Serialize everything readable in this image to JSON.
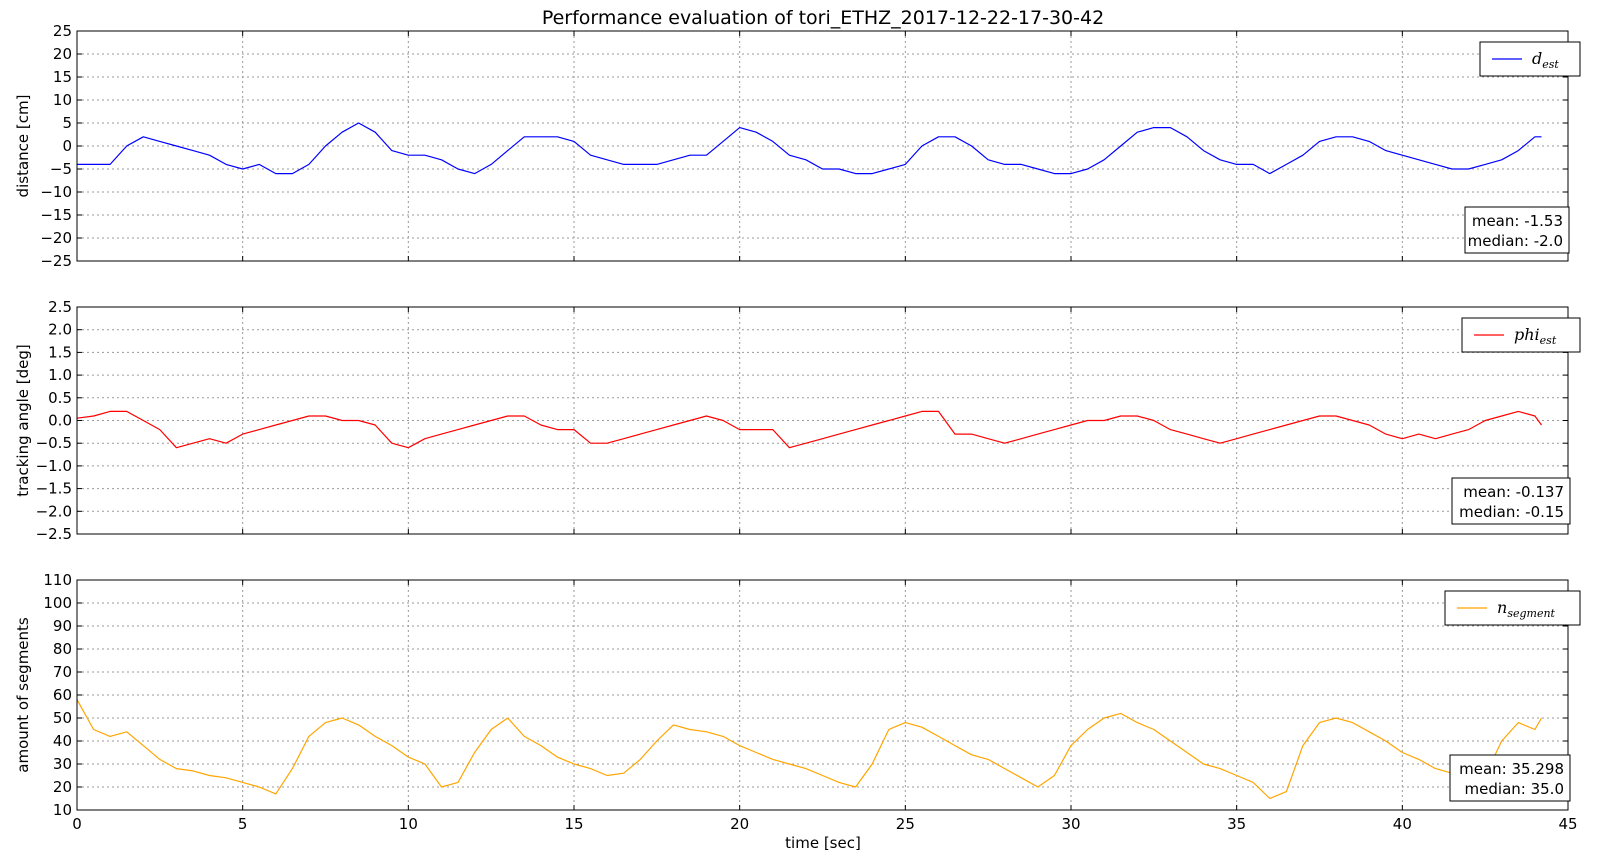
{
  "figure_title": "Performance evaluation of tori_ETHZ_2017-12-22-17-30-42",
  "x_axis": {
    "label": "time [sec]",
    "range": [
      0,
      45
    ],
    "ticks": [
      0,
      5,
      10,
      15,
      20,
      25,
      30,
      35,
      40,
      45
    ]
  },
  "grid": true,
  "chart_data": [
    {
      "type": "line",
      "ylabel": "distance [cm]",
      "ylim": [
        -25,
        25
      ],
      "yticks": [
        -25,
        -20,
        -15,
        -10,
        -5,
        0,
        5,
        10,
        15,
        20,
        25
      ],
      "yticklabels": [
        "−25",
        "−20",
        "−15",
        "−10",
        "−5",
        "0",
        "5",
        "10",
        "15",
        "20",
        "25"
      ],
      "legend_position": "top-right",
      "series": [
        {
          "name_main": "d",
          "name_sub": "est",
          "color": "#0000ff",
          "x": [
            0,
            0.5,
            1,
            1.5,
            2,
            2.5,
            3,
            3.5,
            4,
            4.5,
            5,
            5.5,
            6,
            6.5,
            7,
            7.5,
            8,
            8.5,
            9,
            9.5,
            10,
            10.5,
            11,
            11.5,
            12,
            12.5,
            13,
            13.5,
            14,
            14.5,
            15,
            15.5,
            16,
            16.5,
            17,
            17.5,
            18,
            18.5,
            19,
            19.5,
            20,
            20.5,
            21,
            21.5,
            22,
            22.5,
            23,
            23.5,
            24,
            24.5,
            25,
            25.5,
            26,
            26.5,
            27,
            27.5,
            28,
            28.5,
            29,
            29.5,
            30,
            30.5,
            31,
            31.5,
            32,
            32.5,
            33,
            33.5,
            34,
            34.5,
            35,
            35.5,
            36,
            36.5,
            37,
            37.5,
            38,
            38.5,
            39,
            39.5,
            40,
            40.5,
            41,
            41.5,
            42,
            42.5,
            43,
            43.5,
            44,
            44.2
          ],
          "y": [
            -4,
            -4,
            -4,
            0,
            2,
            1,
            0,
            -1,
            -2,
            -4,
            -5,
            -4,
            -6,
            -6,
            -4,
            0,
            3,
            5,
            3,
            -1,
            -2,
            -2,
            -3,
            -5,
            -6,
            -4,
            -1,
            2,
            2,
            2,
            1,
            -2,
            -3,
            -4,
            -4,
            -4,
            -3,
            -2,
            -2,
            1,
            4,
            3,
            1,
            -2,
            -3,
            -5,
            -5,
            -6,
            -6,
            -5,
            -4,
            0,
            2,
            2,
            0,
            -3,
            -4,
            -4,
            -5,
            -6,
            -6,
            -5,
            -3,
            0,
            3,
            4,
            4,
            2,
            -1,
            -3,
            -4,
            -4,
            -6,
            -4,
            -2,
            1,
            2,
            2,
            1,
            -1,
            -2,
            -3,
            -4,
            -5,
            -5,
            -4,
            -3,
            -1,
            2,
            2
          ]
        }
      ],
      "stats": {
        "mean": "mean: -1.53",
        "median": "median: -2.0"
      }
    },
    {
      "type": "line",
      "ylabel": "tracking angle [deg]",
      "ylim": [
        -2.5,
        2.5
      ],
      "yticks": [
        -2.5,
        -2.0,
        -1.5,
        -1.0,
        -0.5,
        0.0,
        0.5,
        1.0,
        1.5,
        2.0,
        2.5
      ],
      "yticklabels": [
        "−2.5",
        "−2.0",
        "−1.5",
        "−1.0",
        "−0.5",
        "0.0",
        "0.5",
        "1.0",
        "1.5",
        "2.0",
        "2.5"
      ],
      "legend_position": "top-right",
      "series": [
        {
          "name_main": "phi",
          "name_sub": "est",
          "color": "#ff0000",
          "x": [
            0,
            0.5,
            1,
            1.5,
            2,
            2.5,
            3,
            3.5,
            4,
            4.5,
            5,
            5.5,
            6,
            6.5,
            7,
            7.5,
            8,
            8.5,
            9,
            9.5,
            10,
            10.5,
            11,
            11.5,
            12,
            12.5,
            13,
            13.5,
            14,
            14.5,
            15,
            15.5,
            16,
            16.5,
            17,
            17.5,
            18,
            18.5,
            19,
            19.5,
            20,
            20.5,
            21,
            21.5,
            22,
            22.5,
            23,
            23.5,
            24,
            24.5,
            25,
            25.5,
            26,
            26.5,
            27,
            27.5,
            28,
            28.5,
            29,
            29.5,
            30,
            30.5,
            31,
            31.5,
            32,
            32.5,
            33,
            33.5,
            34,
            34.5,
            35,
            35.5,
            36,
            36.5,
            37,
            37.5,
            38,
            38.5,
            39,
            39.5,
            40,
            40.5,
            41,
            41.5,
            42,
            42.5,
            43,
            43.5,
            44,
            44.2
          ],
          "y": [
            0.05,
            0.1,
            0.2,
            0.2,
            0.0,
            -0.2,
            -0.6,
            -0.5,
            -0.4,
            -0.5,
            -0.3,
            -0.2,
            -0.1,
            0.0,
            0.1,
            0.1,
            0.0,
            0.0,
            -0.1,
            -0.5,
            -0.6,
            -0.4,
            -0.3,
            -0.2,
            -0.1,
            0.0,
            0.1,
            0.1,
            -0.1,
            -0.2,
            -0.2,
            -0.5,
            -0.5,
            -0.4,
            -0.3,
            -0.2,
            -0.1,
            0.0,
            0.1,
            0.0,
            -0.2,
            -0.2,
            -0.2,
            -0.6,
            -0.5,
            -0.4,
            -0.3,
            -0.2,
            -0.1,
            0.0,
            0.1,
            0.2,
            0.2,
            -0.3,
            -0.3,
            -0.4,
            -0.5,
            -0.4,
            -0.3,
            -0.2,
            -0.1,
            0.0,
            0.0,
            0.1,
            0.1,
            0.0,
            -0.2,
            -0.3,
            -0.4,
            -0.5,
            -0.4,
            -0.3,
            -0.2,
            -0.1,
            0.0,
            0.1,
            0.1,
            0.0,
            -0.1,
            -0.3,
            -0.4,
            -0.3,
            -0.4,
            -0.3,
            -0.2,
            0.0,
            0.1,
            0.2,
            0.1,
            -0.1
          ]
        }
      ],
      "stats": {
        "mean": "mean: -0.137",
        "median": "median: -0.15"
      }
    },
    {
      "type": "line",
      "ylabel": "amount of segments",
      "ylim": [
        10,
        110
      ],
      "yticks": [
        10,
        20,
        30,
        40,
        50,
        60,
        70,
        80,
        90,
        100,
        110
      ],
      "yticklabels": [
        "10",
        "20",
        "30",
        "40",
        "50",
        "60",
        "70",
        "80",
        "90",
        "100",
        "110"
      ],
      "legend_position": "top-right",
      "series": [
        {
          "name_main": "n",
          "name_sub": "segment",
          "color": "#ffa500",
          "x": [
            0,
            0.5,
            1,
            1.5,
            2,
            2.5,
            3,
            3.5,
            4,
            4.5,
            5,
            5.5,
            6,
            6.5,
            7,
            7.5,
            8,
            8.5,
            9,
            9.5,
            10,
            10.5,
            11,
            11.5,
            12,
            12.5,
            13,
            13.5,
            14,
            14.5,
            15,
            15.5,
            16,
            16.5,
            17,
            17.5,
            18,
            18.5,
            19,
            19.5,
            20,
            20.5,
            21,
            21.5,
            22,
            22.5,
            23,
            23.5,
            24,
            24.5,
            25,
            25.5,
            26,
            26.5,
            27,
            27.5,
            28,
            28.5,
            29,
            29.5,
            30,
            30.5,
            31,
            31.5,
            32,
            32.5,
            33,
            33.5,
            34,
            34.5,
            35,
            35.5,
            36,
            36.5,
            37,
            37.5,
            38,
            38.5,
            39,
            39.5,
            40,
            40.5,
            41,
            41.5,
            42,
            42.5,
            43,
            43.5,
            44,
            44.2
          ],
          "y": [
            58,
            45,
            42,
            44,
            38,
            32,
            28,
            27,
            25,
            24,
            22,
            20,
            17,
            28,
            42,
            48,
            50,
            47,
            42,
            38,
            33,
            30,
            20,
            22,
            35,
            45,
            50,
            42,
            38,
            33,
            30,
            28,
            25,
            26,
            32,
            40,
            47,
            45,
            44,
            42,
            38,
            35,
            32,
            30,
            28,
            25,
            22,
            20,
            30,
            45,
            48,
            46,
            42,
            38,
            34,
            32,
            28,
            24,
            20,
            25,
            38,
            45,
            50,
            52,
            48,
            45,
            40,
            35,
            30,
            28,
            25,
            22,
            15,
            18,
            38,
            48,
            50,
            48,
            44,
            40,
            35,
            32,
            28,
            26,
            24,
            25,
            40,
            48,
            45,
            50
          ]
        }
      ],
      "stats": {
        "mean": "mean: 35.298",
        "median": "median: 35.0"
      }
    }
  ]
}
